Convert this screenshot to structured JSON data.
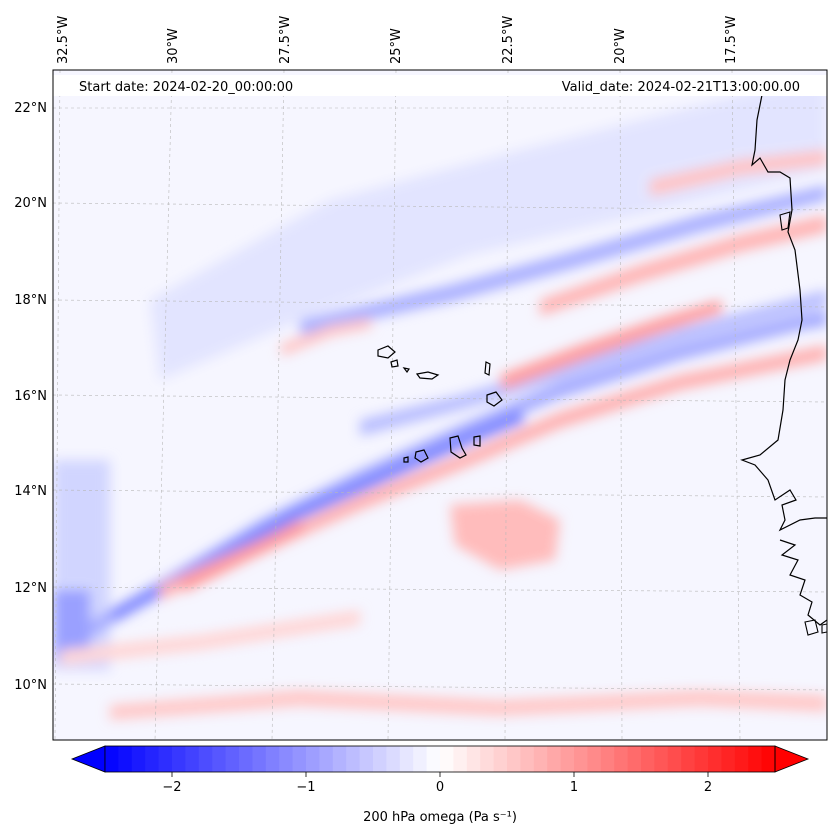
{
  "map": {
    "start_date_label": "Start date: 2024-02-20_00:00:00",
    "valid_date_label": "Valid_date: 2024-02-21T13:00:00.00",
    "lon_labels": [
      "32.5°W",
      "30°W",
      "27.5°W",
      "25°W",
      "22.5°W",
      "20°W",
      "17.5°W"
    ],
    "lat_labels": [
      "22°N",
      "20°N",
      "18°N",
      "16°N",
      "14°N",
      "12°N",
      "10°N"
    ],
    "field": "200 hPa omega",
    "field_unit": "Pa s⁻¹",
    "colormap": "bwr",
    "colors": {
      "negative": "#0000ff",
      "zero": "#ffffff",
      "positive": "#ff0000",
      "coastline": "#000000",
      "grid": "#b0b0b0"
    }
  },
  "colorbar": {
    "label": "200 hPa omega (Pa s⁻¹)",
    "ticks": [
      "−2",
      "−1",
      "0",
      "1",
      "2"
    ],
    "tick_values": [
      -2,
      -1,
      0,
      1,
      2
    ],
    "range": [
      -2.5,
      2.5
    ],
    "extend": "both"
  }
}
